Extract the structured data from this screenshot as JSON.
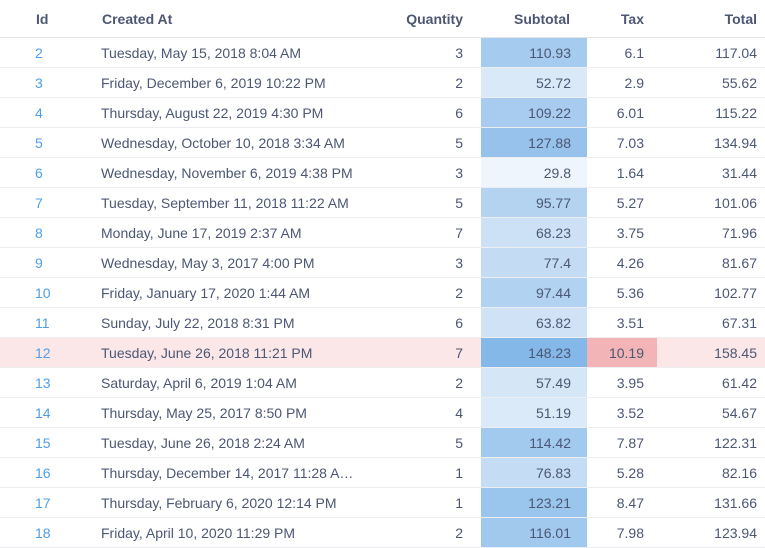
{
  "columns": {
    "id": "Id",
    "created_at": "Created At",
    "quantity": "Quantity",
    "subtotal": "Subtotal",
    "tax": "Tax",
    "total": "Total"
  },
  "colors": {
    "link": "#509ee3",
    "subtotal_scale_low": "#eef5fc",
    "subtotal_scale_high": "#84b8e8",
    "tax_highlight": "#f2b4b6",
    "row_highlight": "#fbe7e8"
  },
  "highlight": {
    "row_id": "12",
    "tax_cell": "10.19"
  },
  "rows": [
    {
      "id": "2",
      "created_at": "Tuesday, May 15, 2018 8:04 AM",
      "quantity": "3",
      "subtotal": "110.93",
      "tax": "6.1",
      "total": "117.04"
    },
    {
      "id": "3",
      "created_at": "Friday, December 6, 2019 10:22 PM",
      "quantity": "2",
      "subtotal": "52.72",
      "tax": "2.9",
      "total": "55.62"
    },
    {
      "id": "4",
      "created_at": "Thursday, August 22, 2019 4:30 PM",
      "quantity": "6",
      "subtotal": "109.22",
      "tax": "6.01",
      "total": "115.22"
    },
    {
      "id": "5",
      "created_at": "Wednesday, October 10, 2018 3:34 AM",
      "quantity": "5",
      "subtotal": "127.88",
      "tax": "7.03",
      "total": "134.94"
    },
    {
      "id": "6",
      "created_at": "Wednesday, November 6, 2019 4:38 PM",
      "quantity": "3",
      "subtotal": "29.8",
      "tax": "1.64",
      "total": "31.44"
    },
    {
      "id": "7",
      "created_at": "Tuesday, September 11, 2018 11:22 AM",
      "quantity": "5",
      "subtotal": "95.77",
      "tax": "5.27",
      "total": "101.06"
    },
    {
      "id": "8",
      "created_at": "Monday, June 17, 2019 2:37 AM",
      "quantity": "7",
      "subtotal": "68.23",
      "tax": "3.75",
      "total": "71.96"
    },
    {
      "id": "9",
      "created_at": "Wednesday, May 3, 2017 4:00 PM",
      "quantity": "3",
      "subtotal": "77.4",
      "tax": "4.26",
      "total": "81.67"
    },
    {
      "id": "10",
      "created_at": "Friday, January 17, 2020 1:44 AM",
      "quantity": "2",
      "subtotal": "97.44",
      "tax": "5.36",
      "total": "102.77"
    },
    {
      "id": "11",
      "created_at": "Sunday, July 22, 2018 8:31 PM",
      "quantity": "6",
      "subtotal": "63.82",
      "tax": "3.51",
      "total": "67.31"
    },
    {
      "id": "12",
      "created_at": "Tuesday, June 26, 2018 11:21 PM",
      "quantity": "7",
      "subtotal": "148.23",
      "tax": "10.19",
      "total": "158.45"
    },
    {
      "id": "13",
      "created_at": "Saturday, April 6, 2019 1:04 AM",
      "quantity": "2",
      "subtotal": "57.49",
      "tax": "3.95",
      "total": "61.42"
    },
    {
      "id": "14",
      "created_at": "Thursday, May 25, 2017 8:50 PM",
      "quantity": "4",
      "subtotal": "51.19",
      "tax": "3.52",
      "total": "54.67"
    },
    {
      "id": "15",
      "created_at": "Tuesday, June 26, 2018 2:24 AM",
      "quantity": "5",
      "subtotal": "114.42",
      "tax": "7.87",
      "total": "122.31"
    },
    {
      "id": "16",
      "created_at": "Thursday, December 14, 2017 11:28 A…",
      "quantity": "1",
      "subtotal": "76.83",
      "tax": "5.28",
      "total": "82.16"
    },
    {
      "id": "17",
      "created_at": "Thursday, February 6, 2020 12:14 PM",
      "quantity": "1",
      "subtotal": "123.21",
      "tax": "8.47",
      "total": "131.66"
    },
    {
      "id": "18",
      "created_at": "Friday, April 10, 2020 11:29 PM",
      "quantity": "2",
      "subtotal": "116.01",
      "tax": "7.98",
      "total": "123.94"
    }
  ]
}
